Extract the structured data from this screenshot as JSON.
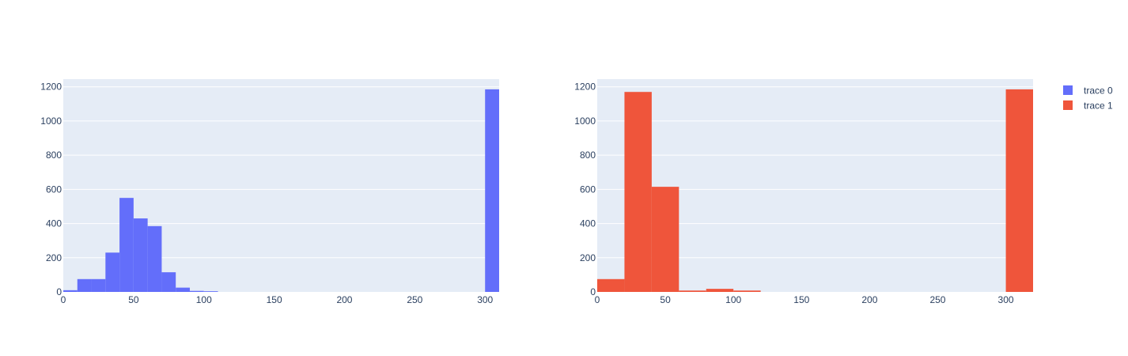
{
  "chart_data": [
    {
      "type": "bar",
      "subtype": "histogram",
      "series": [
        {
          "name": "trace 0",
          "color": "#636efa",
          "bins": [
            {
              "x0": 0,
              "x1": 10,
              "count": 10
            },
            {
              "x0": 10,
              "x1": 20,
              "count": 75
            },
            {
              "x0": 20,
              "x1": 30,
              "count": 75
            },
            {
              "x0": 30,
              "x1": 40,
              "count": 230
            },
            {
              "x0": 40,
              "x1": 50,
              "count": 550
            },
            {
              "x0": 50,
              "x1": 60,
              "count": 430
            },
            {
              "x0": 60,
              "x1": 70,
              "count": 385
            },
            {
              "x0": 70,
              "x1": 80,
              "count": 115
            },
            {
              "x0": 80,
              "x1": 90,
              "count": 25
            },
            {
              "x0": 90,
              "x1": 100,
              "count": 6
            },
            {
              "x0": 100,
              "x1": 110,
              "count": 4
            },
            {
              "x0": 300,
              "x1": 310,
              "count": 1185
            }
          ]
        }
      ],
      "xlim": [
        0,
        310
      ],
      "ylim": [
        0,
        1200
      ],
      "x_ticks": [
        "0",
        "50",
        "100",
        "150",
        "200",
        "250",
        "300"
      ],
      "y_ticks": [
        "0",
        "200",
        "400",
        "600",
        "800",
        "1000",
        "1200"
      ],
      "grid": true
    },
    {
      "type": "bar",
      "subtype": "histogram",
      "series": [
        {
          "name": "trace 1",
          "color": "#ef553b",
          "bins": [
            {
              "x0": 0,
              "x1": 20,
              "count": 75
            },
            {
              "x0": 20,
              "x1": 40,
              "count": 1170
            },
            {
              "x0": 40,
              "x1": 60,
              "count": 615
            },
            {
              "x0": 60,
              "x1": 80,
              "count": 8
            },
            {
              "x0": 80,
              "x1": 100,
              "count": 18
            },
            {
              "x0": 100,
              "x1": 120,
              "count": 8
            },
            {
              "x0": 300,
              "x1": 320,
              "count": 1185
            }
          ]
        }
      ],
      "xlim": [
        0,
        320
      ],
      "ylim": [
        0,
        1200
      ],
      "x_ticks": [
        "0",
        "50",
        "100",
        "150",
        "200",
        "250",
        "300"
      ],
      "y_ticks": [
        "0",
        "200",
        "400",
        "600",
        "800",
        "1000",
        "1200"
      ],
      "grid": true
    }
  ],
  "legend": {
    "placement": "top-right",
    "items": [
      {
        "label": "trace 0",
        "color": "#636efa"
      },
      {
        "label": "trace 1",
        "color": "#ef553b"
      }
    ]
  },
  "style": {
    "plot_background": "#e5ecf6",
    "grid_color": "#ffffff",
    "text_color": "#2a3f5f"
  }
}
